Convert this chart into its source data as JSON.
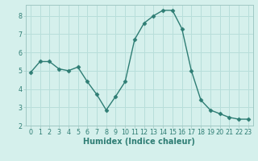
{
  "x": [
    0,
    1,
    2,
    3,
    4,
    5,
    6,
    7,
    8,
    9,
    10,
    11,
    12,
    13,
    14,
    15,
    16,
    17,
    18,
    19,
    20,
    21,
    22,
    23
  ],
  "y": [
    4.9,
    5.5,
    5.5,
    5.1,
    5.0,
    5.2,
    4.4,
    3.7,
    2.85,
    3.6,
    4.4,
    6.7,
    7.6,
    8.0,
    8.3,
    8.3,
    7.3,
    5.0,
    3.4,
    2.85,
    2.65,
    2.45,
    2.35,
    2.35
  ],
  "xlabel": "Humidex (Indice chaleur)",
  "line_color": "#2e7d74",
  "marker": "D",
  "marker_size": 2.5,
  "background_color": "#d5f0ec",
  "grid_color": "#b8deda",
  "ylim": [
    2,
    8.6
  ],
  "xlim": [
    -0.5,
    23.5
  ],
  "yticks": [
    2,
    3,
    4,
    5,
    6,
    7,
    8
  ],
  "xticks": [
    0,
    1,
    2,
    3,
    4,
    5,
    6,
    7,
    8,
    9,
    10,
    11,
    12,
    13,
    14,
    15,
    16,
    17,
    18,
    19,
    20,
    21,
    22,
    23
  ],
  "tick_fontsize": 5.8,
  "xlabel_fontsize": 7.0,
  "linewidth": 1.0
}
